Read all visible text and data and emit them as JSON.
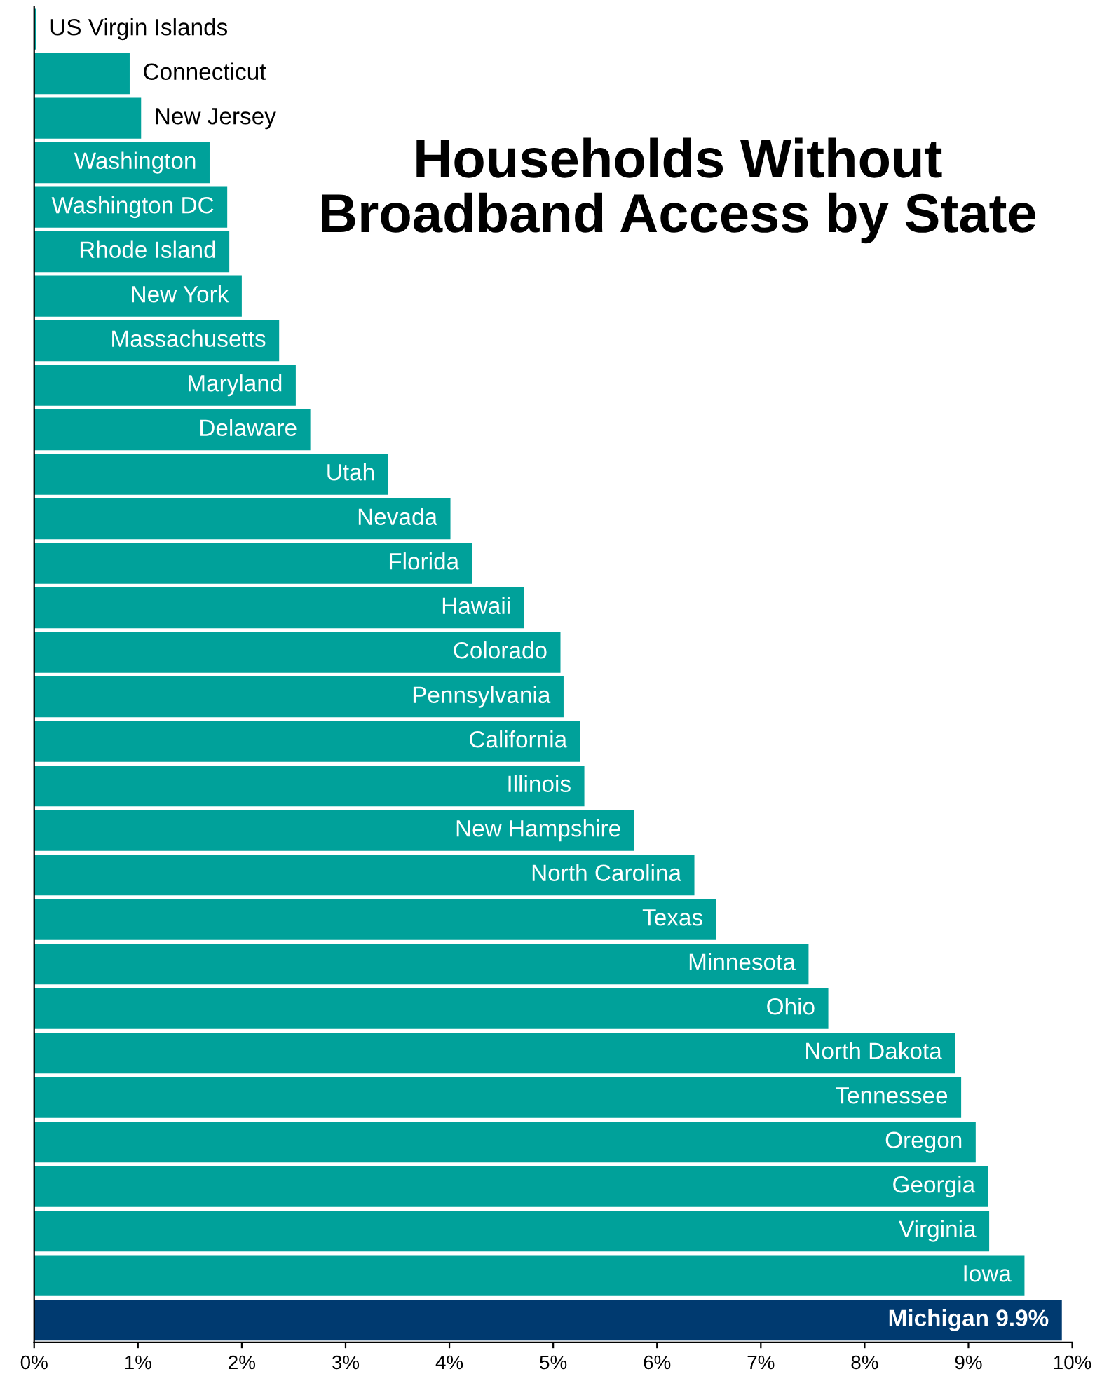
{
  "chart_data": {
    "type": "bar",
    "orientation": "horizontal",
    "title": "Households Without\nBroadband Access by State",
    "categories": [
      "US Virgin Islands",
      "Connecticut",
      "New Jersey",
      "Washington",
      "Washington DC",
      "Rhode Island",
      "New York",
      "Massachusetts",
      "Maryland",
      "Delaware",
      "Utah",
      "Nevada",
      "Florida",
      "Hawaii",
      "Colorado",
      "Pennsylvania",
      "California",
      "Illinois",
      "New Hampshire",
      "North Carolina",
      "Texas",
      "Minnesota",
      "Ohio",
      "North Dakota",
      "Tennessee",
      "Oregon",
      "Georgia",
      "Virginia",
      "Iowa",
      "Michigan"
    ],
    "values": [
      0.02,
      0.92,
      1.03,
      1.69,
      1.86,
      1.88,
      2.0,
      2.36,
      2.52,
      2.66,
      3.41,
      4.01,
      4.22,
      4.72,
      5.07,
      5.1,
      5.26,
      5.3,
      5.78,
      6.36,
      6.57,
      7.46,
      7.65,
      8.87,
      8.93,
      9.07,
      9.19,
      9.2,
      9.54,
      9.9
    ],
    "value_labels": [
      null,
      null,
      null,
      null,
      null,
      null,
      null,
      null,
      null,
      null,
      null,
      null,
      null,
      null,
      null,
      null,
      null,
      null,
      null,
      null,
      null,
      null,
      null,
      null,
      null,
      null,
      null,
      null,
      null,
      "9.9%"
    ],
    "colors": [
      "#00a19a",
      "#00a19a",
      "#00a19a",
      "#00a19a",
      "#00a19a",
      "#00a19a",
      "#00a19a",
      "#00a19a",
      "#00a19a",
      "#00a19a",
      "#00a19a",
      "#00a19a",
      "#00a19a",
      "#00a19a",
      "#00a19a",
      "#00a19a",
      "#00a19a",
      "#00a19a",
      "#00a19a",
      "#00a19a",
      "#00a19a",
      "#00a19a",
      "#00a19a",
      "#00a19a",
      "#00a19a",
      "#00a19a",
      "#00a19a",
      "#00a19a",
      "#00a19a",
      "#003a70"
    ],
    "xlim": [
      0,
      10
    ],
    "xticks": [
      {
        "value": 0,
        "label": "0%"
      },
      {
        "value": 1,
        "label": "1%"
      },
      {
        "value": 2,
        "label": "2%"
      },
      {
        "value": 3,
        "label": "3%"
      },
      {
        "value": 4,
        "label": "4%"
      },
      {
        "value": 5,
        "label": "5%"
      },
      {
        "value": 6,
        "label": "6%"
      },
      {
        "value": 7,
        "label": "7%"
      },
      {
        "value": 8,
        "label": "8%"
      },
      {
        "value": 9,
        "label": "9%"
      },
      {
        "value": 10,
        "label": "10%"
      }
    ],
    "grid": false,
    "legend": false
  }
}
